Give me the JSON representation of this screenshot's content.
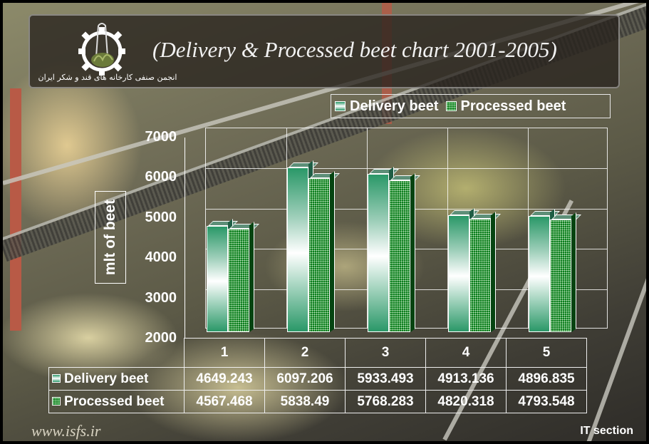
{
  "slide": {
    "title": "(Delivery & Processed beet chart 2001-2005)",
    "logo_caption": "انجمن صنفی کارخانه های قند و شکر ایران",
    "footer_url": "www.isfs.ir",
    "footer_section": "IT section"
  },
  "legend": {
    "items": [
      {
        "label": "Delivery beet",
        "icon": "gradient-swatch-icon"
      },
      {
        "label": "Processed beet",
        "icon": "dotted-green-swatch-icon"
      }
    ]
  },
  "yaxis": {
    "title": "mlt of beet",
    "ticks": [
      "7000",
      "6000",
      "5000",
      "4000",
      "3000",
      "2000"
    ]
  },
  "table": {
    "columns": [
      "1",
      "2",
      "3",
      "4",
      "5"
    ],
    "rows": [
      {
        "label": "Delivery beet",
        "values": [
          "4649.243",
          "6097.206",
          "5933.493",
          "4913.136",
          "4896.835"
        ]
      },
      {
        "label": "Processed beet",
        "values": [
          "4567.468",
          "5838.49",
          "5768.283",
          "4820.318",
          "4793.548"
        ]
      }
    ]
  },
  "colors": {
    "delivery_top": "#2a9868",
    "delivery_mid": "#ffffff",
    "processed": "#0b7d1c",
    "processed_side": "#054411",
    "banner_bg": "#28231e",
    "text": "#ffffff"
  },
  "chart_data": {
    "type": "bar",
    "title": "(Delivery & Processed beet chart 2001-2005)",
    "xlabel": "",
    "ylabel": "mlt of beet",
    "categories": [
      "1",
      "2",
      "3",
      "4",
      "5"
    ],
    "series": [
      {
        "name": "Delivery beet",
        "values": [
          4649.243,
          6097.206,
          5933.493,
          4913.136,
          4896.835
        ]
      },
      {
        "name": "Processed beet",
        "values": [
          4567.468,
          5838.49,
          5768.283,
          4820.318,
          4793.548
        ]
      }
    ],
    "ylim": [
      2000,
      7000
    ],
    "yticks": [
      2000,
      3000,
      4000,
      5000,
      6000,
      7000
    ],
    "grid": true,
    "legend_position": "top-right",
    "style": "3d-clustered-column with data table"
  }
}
